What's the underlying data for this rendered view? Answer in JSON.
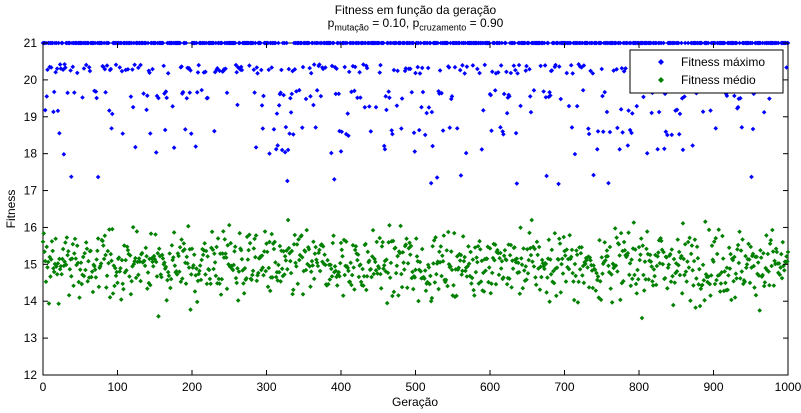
{
  "chart_data": {
    "type": "scatter",
    "title": "Fitness em função da geração",
    "subtitle": {
      "p1_base": "p",
      "p1_sub": "mutação",
      "p1_value": " = 0.10, ",
      "p2_base": "p",
      "p2_sub": "cruzamento",
      "p2_value": " = 0.90"
    },
    "xlabel": "Geração",
    "ylabel": "Fitness",
    "xlim": [
      0,
      1000
    ],
    "ylim": [
      12,
      21
    ],
    "xticks": [
      0,
      100,
      200,
      300,
      400,
      500,
      600,
      700,
      800,
      900,
      1000
    ],
    "yticks": [
      12,
      13,
      14,
      15,
      16,
      17,
      18,
      19,
      20,
      21
    ],
    "grid": false,
    "legend_position": "top-right",
    "series": [
      {
        "name": "Fitness máximo",
        "color": "#0000ff",
        "description": "max fitness per generation (1000 points)",
        "level_weights": [
          [
            21,
            0.55
          ],
          [
            20.3,
            0.2
          ],
          [
            19.6,
            0.1
          ],
          [
            19.2,
            0.06
          ],
          [
            18.6,
            0.05
          ],
          [
            18.1,
            0.03
          ],
          [
            17.3,
            0.01
          ]
        ]
      },
      {
        "name": "Fitness médio",
        "color": "#008000",
        "description": "mean fitness per generation (1000 points)",
        "mean": 15.0,
        "spread": 0.65,
        "min": 12.5,
        "max": 17.0
      }
    ]
  }
}
